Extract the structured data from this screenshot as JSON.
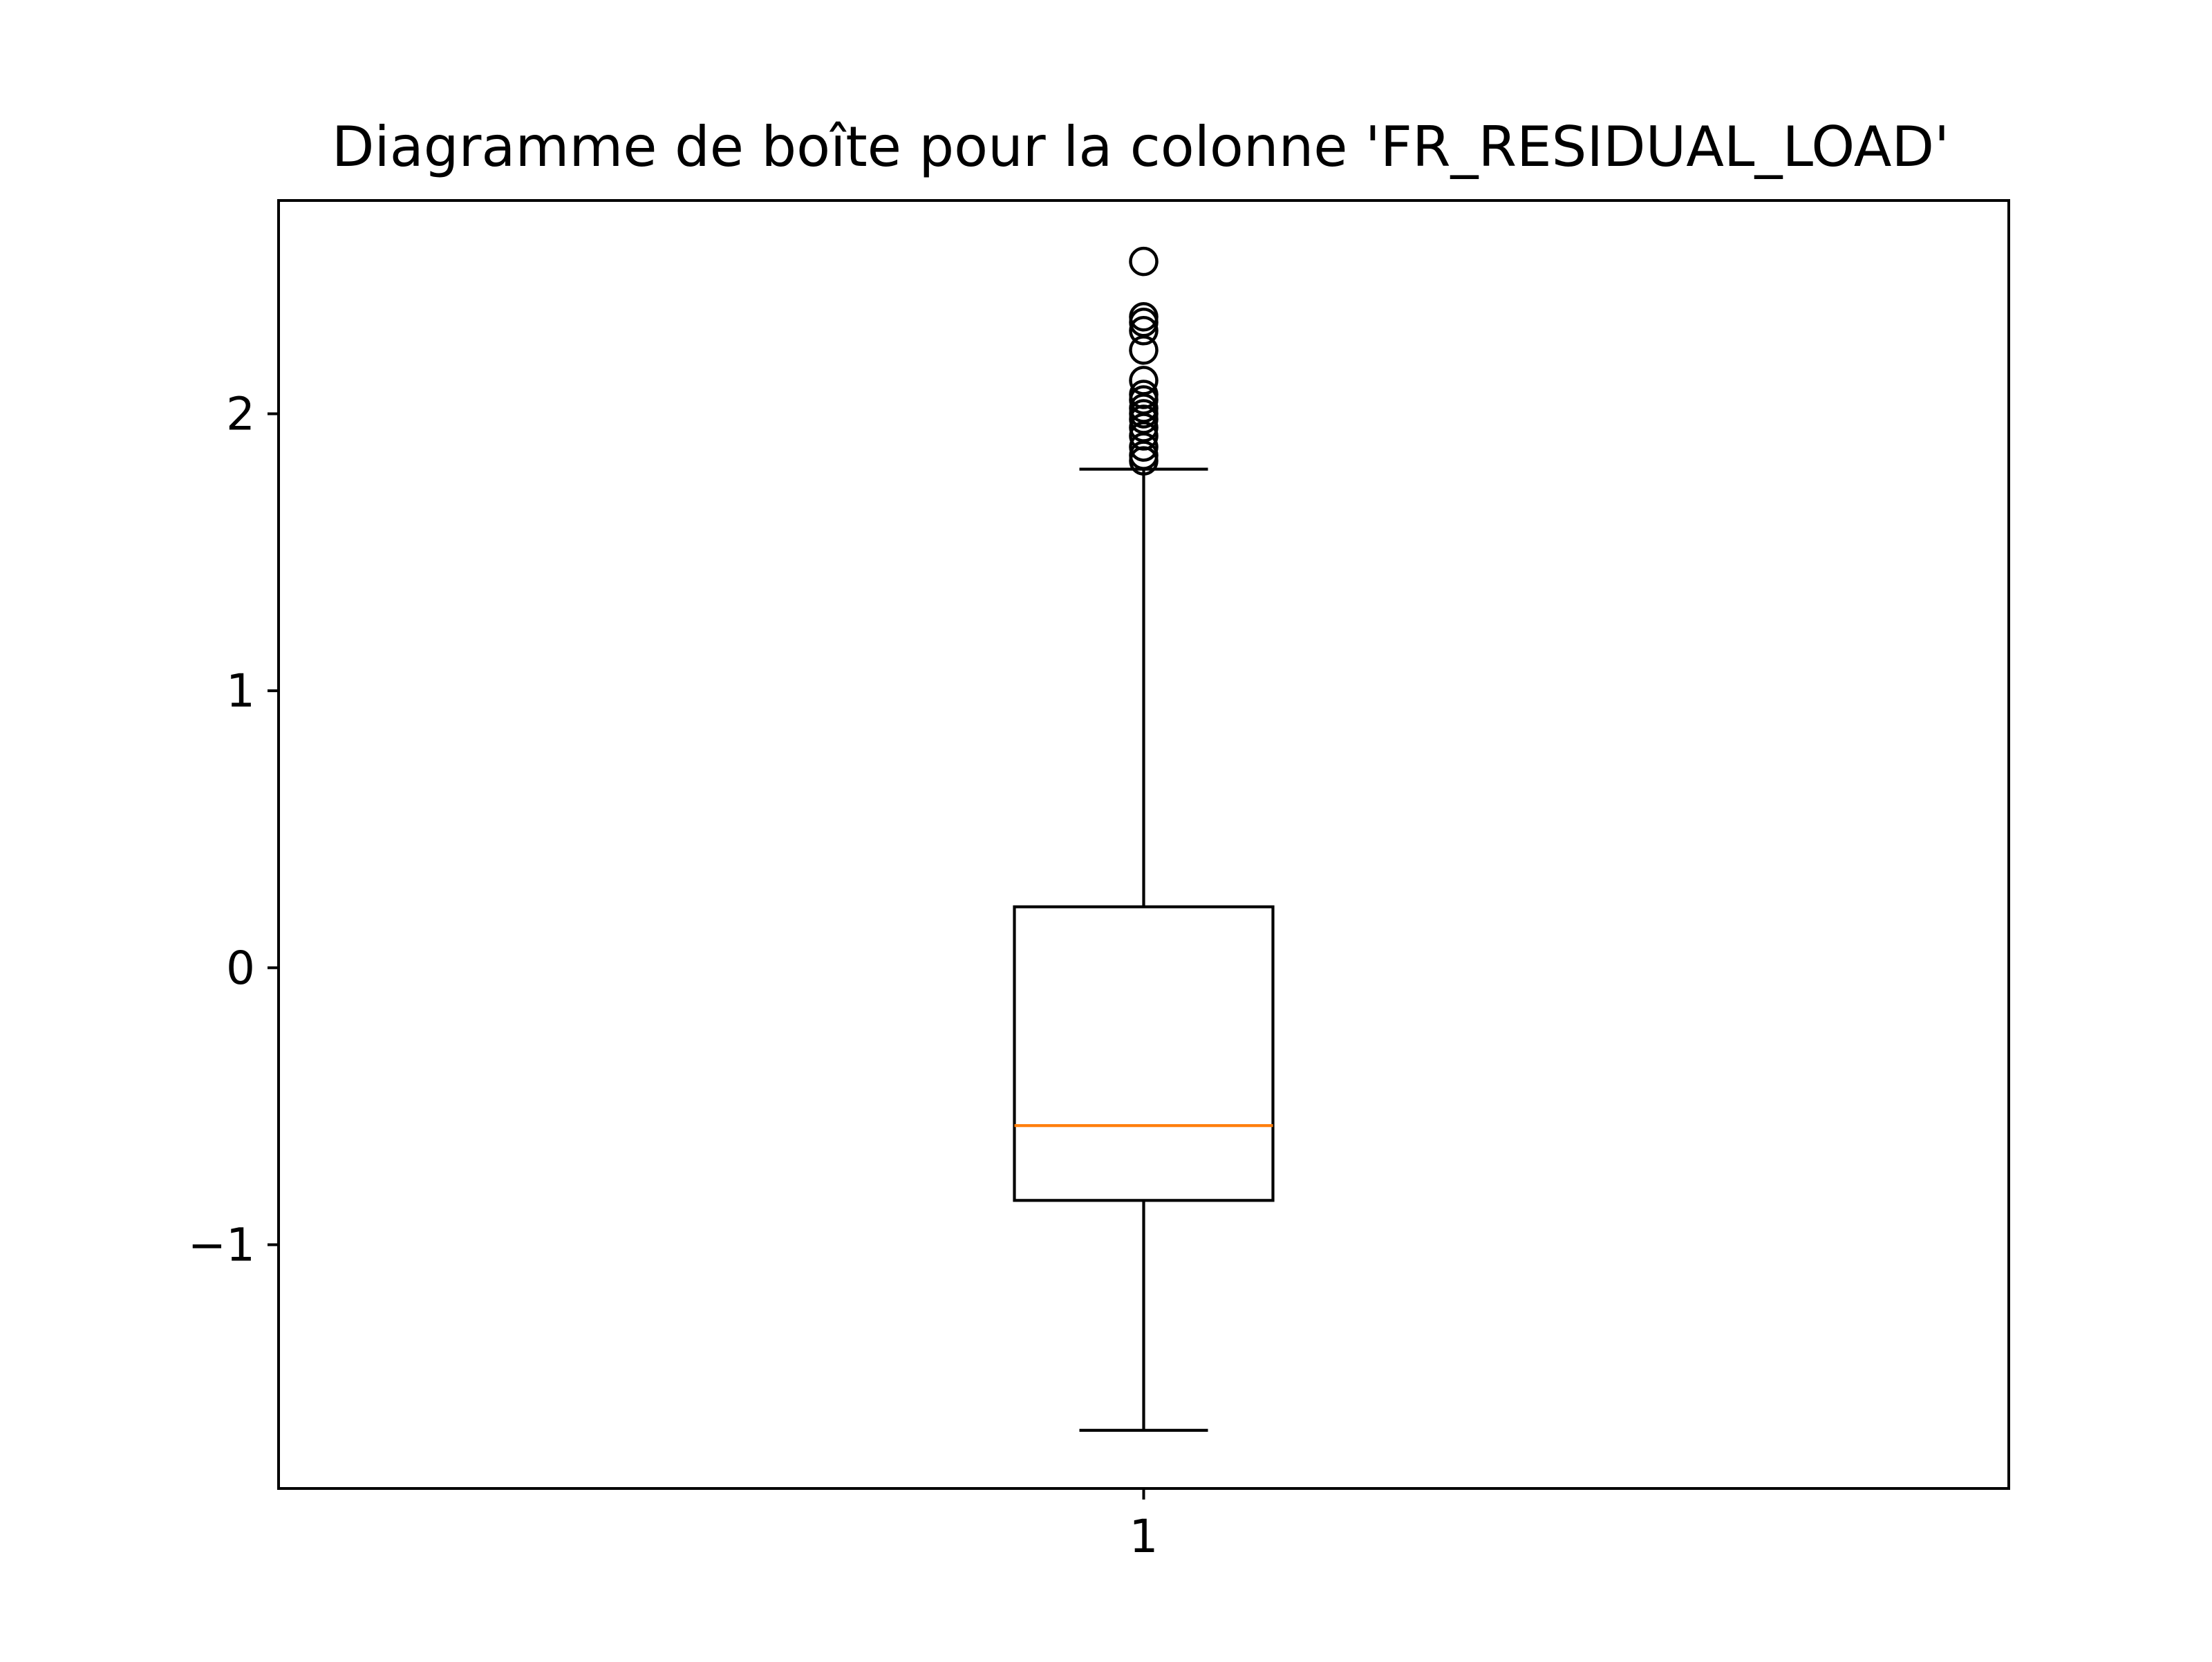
{
  "chart_data": {
    "type": "boxplot",
    "title": "Diagramme de boîte pour la colonne 'FR_RESIDUAL_LOAD'",
    "xlabel": "",
    "ylabel": "",
    "categories": [
      "1"
    ],
    "ylim": [
      -1.88,
      2.77
    ],
    "yticks": [
      {
        "value": -1,
        "label": "−1"
      },
      {
        "value": 0,
        "label": "0"
      },
      {
        "value": 1,
        "label": "1"
      },
      {
        "value": 2,
        "label": "2"
      }
    ],
    "grid": false,
    "legend": "none",
    "boxes": [
      {
        "category": "1",
        "whisker_low": -1.67,
        "q1": -0.84,
        "median": -0.57,
        "q3": 0.22,
        "whisker_high": 1.8,
        "outliers": [
          2.55,
          2.35,
          2.33,
          2.3,
          2.23,
          2.12,
          2.07,
          2.05,
          2.02,
          2.0,
          1.98,
          1.95,
          1.92,
          1.88,
          1.85,
          1.83
        ]
      }
    ],
    "colors": {
      "box": "#000000",
      "median": "#ff7f0e",
      "outlier": "#000000"
    }
  }
}
